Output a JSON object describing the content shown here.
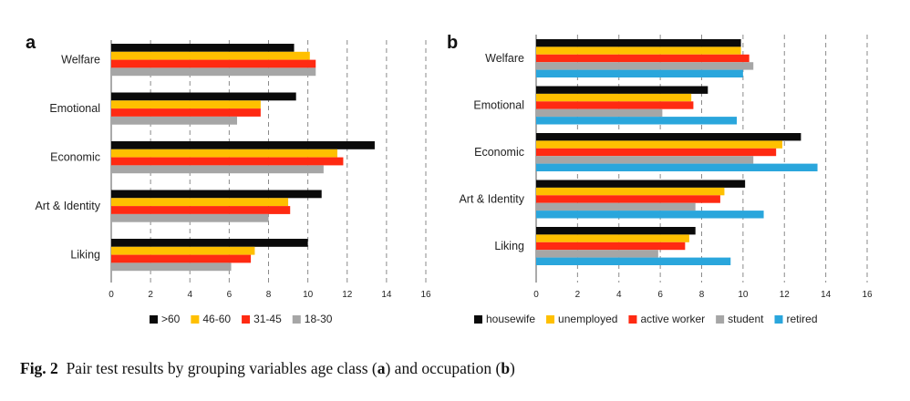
{
  "chart_data": [
    {
      "type": "bar",
      "orientation": "horizontal",
      "panel": "a",
      "categories": [
        "Welfare",
        "Emotional",
        "Economic",
        "Art & Identity",
        "Liking"
      ],
      "series": [
        {
          "name": ">60",
          "color": "#0a0a0a",
          "values": [
            9.3,
            9.4,
            13.4,
            10.7,
            10.0
          ]
        },
        {
          "name": "46-60",
          "color": "#ffc000",
          "values": [
            10.1,
            7.6,
            11.5,
            9.0,
            7.3
          ]
        },
        {
          "name": "31-45",
          "color": "#ff2a12",
          "values": [
            10.4,
            7.6,
            11.8,
            9.1,
            7.1
          ]
        },
        {
          "name": "18-30",
          "color": "#a6a6a6",
          "values": [
            10.4,
            6.4,
            10.8,
            8.0,
            6.1
          ]
        }
      ],
      "xlim": [
        0,
        16
      ],
      "xticks": [
        "0",
        "2",
        "4",
        "6",
        "8",
        "10",
        "12",
        "14",
        "16"
      ],
      "grid": "vertical dashed",
      "legend": "bottom",
      "title": "",
      "xlabel": "",
      "ylabel": ""
    },
    {
      "type": "bar",
      "orientation": "horizontal",
      "panel": "b",
      "categories": [
        "Welfare",
        "Emotional",
        "Economic",
        "Art & Identity",
        "Liking"
      ],
      "series": [
        {
          "name": "housewife",
          "color": "#0a0a0a",
          "values": [
            9.9,
            8.3,
            12.8,
            10.1,
            7.7
          ]
        },
        {
          "name": "unemployed",
          "color": "#ffc000",
          "values": [
            9.9,
            7.5,
            11.9,
            9.1,
            7.4
          ]
        },
        {
          "name": "active worker",
          "color": "#ff2a12",
          "values": [
            10.3,
            7.6,
            11.6,
            8.9,
            7.2
          ]
        },
        {
          "name": "student",
          "color": "#a6a6a6",
          "values": [
            10.5,
            6.1,
            10.5,
            7.7,
            5.9
          ]
        },
        {
          "name": "retired",
          "color": "#2aa6dc",
          "values": [
            10.0,
            9.7,
            13.6,
            11.0,
            9.4
          ]
        }
      ],
      "xlim": [
        0,
        16
      ],
      "xticks": [
        "0",
        "2",
        "4",
        "6",
        "8",
        "10",
        "12",
        "14",
        "16"
      ],
      "grid": "vertical dashed",
      "legend": "bottom",
      "title": "",
      "xlabel": "",
      "ylabel": ""
    }
  ],
  "caption": {
    "label": "Fig. 2",
    "text_before_a": "Pair test results by grouping variables age class (",
    "a": "a",
    "text_between": ") and occupation (",
    "b": "b",
    "text_after": ")"
  }
}
